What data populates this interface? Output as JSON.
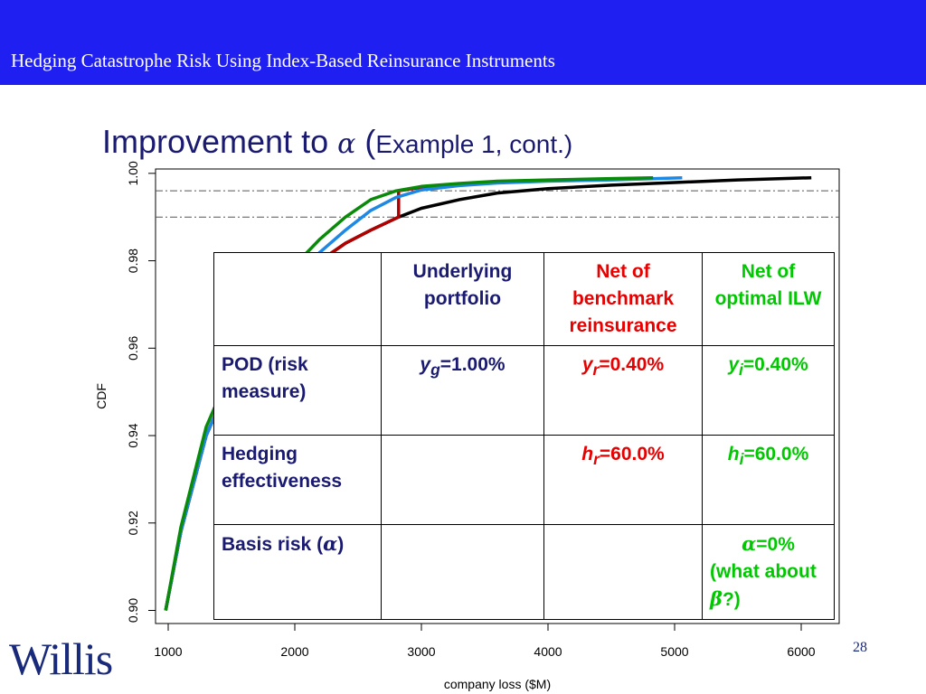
{
  "header": {
    "title": "Hedging Catastrophe Risk Using Index-Based Reinsurance Instruments"
  },
  "slide": {
    "title_main": "Improvement to ",
    "title_symbol": "α",
    "title_paren": " (",
    "title_sub": "Example 1, cont.)"
  },
  "colors": {
    "banner": "#1f1ff2",
    "underlying": "#000000",
    "benchmark": "#b00000",
    "ilw_blue": "#1e88e5",
    "ilw_green": "#0a8a0a"
  },
  "chart_data": {
    "type": "line",
    "xlabel": "company loss ($M)",
    "ylabel": "CDF",
    "xlim": [
      900,
      6300
    ],
    "ylim": [
      0.897,
      1.001
    ],
    "xticks": [
      1000,
      2000,
      3000,
      4000,
      5000,
      6000
    ],
    "yticks": [
      0.9,
      0.92,
      0.94,
      0.96,
      0.98,
      1.0
    ],
    "ytick_labels": [
      "0.90",
      "0.92",
      "0.94",
      "0.96",
      "0.98",
      "1.00"
    ],
    "reference_lines_y": [
      0.996,
      0.99
    ],
    "series": [
      {
        "color": "#000000",
        "x": [
          980,
          1100,
          1300,
          1600,
          2000,
          2200,
          2400,
          2600,
          2820,
          3000,
          3300,
          3600,
          4000,
          4500,
          5000,
          5500,
          6080
        ],
        "y": [
          0.9,
          0.918,
          0.94,
          0.96,
          0.975,
          0.98,
          0.984,
          0.987,
          0.99,
          0.992,
          0.994,
          0.9955,
          0.9965,
          0.9973,
          0.9979,
          0.9985,
          0.999
        ]
      },
      {
        "color": "#b00000",
        "x": [
          980,
          1100,
          1300,
          1600,
          2000,
          2200,
          2400,
          2600,
          2820,
          2820,
          3000,
          3300,
          3600,
          4000,
          4500,
          4820
        ],
        "y": [
          0.9,
          0.918,
          0.94,
          0.96,
          0.975,
          0.98,
          0.984,
          0.987,
          0.99,
          0.996,
          0.9968,
          0.9975,
          0.998,
          0.9984,
          0.9987,
          0.9989
        ]
      },
      {
        "color": "#1e88e5",
        "x": [
          980,
          1100,
          1300,
          1600,
          2000,
          2200,
          2400,
          2600,
          2800,
          3000,
          3300,
          3600,
          4000,
          4500,
          5060
        ],
        "y": [
          0.9,
          0.918,
          0.94,
          0.96,
          0.976,
          0.982,
          0.987,
          0.9915,
          0.9945,
          0.9962,
          0.9972,
          0.9978,
          0.9982,
          0.9985,
          0.999
        ]
      },
      {
        "color": "#0a8a0a",
        "x": [
          980,
          1100,
          1300,
          1600,
          2000,
          2200,
          2400,
          2600,
          2800,
          3000,
          3300,
          3600,
          4000,
          4500,
          4830
        ],
        "y": [
          0.9,
          0.919,
          0.942,
          0.962,
          0.979,
          0.985,
          0.99,
          0.994,
          0.996,
          0.997,
          0.9977,
          0.9982,
          0.9985,
          0.9988,
          0.999
        ]
      }
    ]
  },
  "table": {
    "headers": [
      "Underlying portfolio",
      "Net of benchmark reinsurance",
      "Net of optimal ILW"
    ],
    "rows": [
      {
        "label": "POD (risk measure)",
        "underlying_sym": "y",
        "underlying_sub": "g",
        "underlying_val": "=1.00%",
        "benchmark_sym": "y",
        "benchmark_sub": "r",
        "benchmark_val": "=0.40%",
        "ilw_sym": "y",
        "ilw_sub": "i",
        "ilw_val": "=0.40%"
      },
      {
        "label": "Hedging effectiveness",
        "benchmark_sym": "h",
        "benchmark_sub": "r",
        "benchmark_val": "=60.0%",
        "ilw_sym": "h",
        "ilw_sub": "i",
        "ilw_val": "=60.0%"
      },
      {
        "label_pre": "Basis risk (",
        "label_sym": "α",
        "label_post": ")",
        "ilw_sym": "α",
        "ilw_val": "=0%",
        "ilw_extra_pre": "(what about ",
        "ilw_extra_sym": "β",
        "ilw_extra_post": "?)"
      }
    ]
  },
  "footer": {
    "logo": "Willis",
    "page": "28"
  }
}
